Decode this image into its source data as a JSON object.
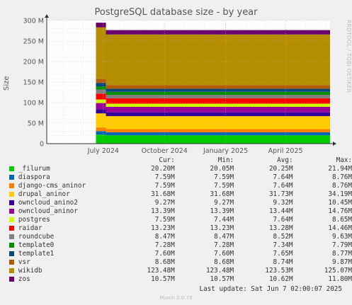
{
  "title": "PostgreSQL database size - by year",
  "side_label": "RRDTOOL / TOBI OETIKER",
  "ylabel": "Size",
  "colors": {
    "background": "#f0f0f0",
    "plot_bg": "#ffffff",
    "grid_major": "#e8a0a0",
    "grid_minor": "#dddddd",
    "axis": "#333333"
  },
  "chart_data": {
    "type": "area",
    "stacked": true,
    "ylabel": "Size",
    "ylim": [
      0,
      300
    ],
    "y_unit": "M",
    "y_ticks": [
      "0",
      "50 M",
      "100 M",
      "150 M",
      "200 M",
      "250 M",
      "300 M"
    ],
    "x_ticks": [
      "July 2024",
      "October 2024",
      "January 2025",
      "April 2025"
    ],
    "time_range": [
      "2024-04-07",
      "2025-06-07"
    ],
    "data_start": "2024-06-20",
    "step_date": "2024-07-05",
    "grid": true,
    "series": [
      {
        "name": "_filurum",
        "color": "#00cc00",
        "cur": "20.20M",
        "min": "20.05M",
        "avg": "20.25M",
        "max": "21.94M",
        "start": 21.94,
        "end": 20.2
      },
      {
        "name": "diaspora",
        "color": "#0066b3",
        "cur": "7.59M",
        "min": "7.59M",
        "avg": "7.64M",
        "max": "8.76M",
        "start": 8.76,
        "end": 7.59
      },
      {
        "name": "django-cms_aninor",
        "color": "#ff8000",
        "cur": "7.59M",
        "min": "7.59M",
        "avg": "7.64M",
        "max": "8.76M",
        "start": 8.76,
        "end": 7.59
      },
      {
        "name": "drupal_aninor",
        "color": "#ffcc00",
        "cur": "31.68M",
        "min": "31.68M",
        "avg": "31.73M",
        "max": "34.19M",
        "start": 34.19,
        "end": 31.68
      },
      {
        "name": "owncloud_anino2",
        "color": "#330099",
        "cur": "9.27M",
        "min": "9.27M",
        "avg": "9.32M",
        "max": "10.45M",
        "start": 10.45,
        "end": 9.27
      },
      {
        "name": "owncloud_aninor",
        "color": "#990099",
        "cur": "13.39M",
        "min": "13.39M",
        "avg": "13.44M",
        "max": "14.76M",
        "start": 14.76,
        "end": 13.39
      },
      {
        "name": "postgres",
        "color": "#ccff00",
        "cur": "7.59M",
        "min": "7.44M",
        "avg": "7.64M",
        "max": "8.65M",
        "start": 8.65,
        "end": 7.59
      },
      {
        "name": "raidar",
        "color": "#ff0000",
        "cur": "13.23M",
        "min": "13.23M",
        "avg": "13.28M",
        "max": "14.46M",
        "start": 14.46,
        "end": 13.23
      },
      {
        "name": "roundcube",
        "color": "#808080",
        "cur": "8.47M",
        "min": "8.47M",
        "avg": "8.52M",
        "max": "9.63M",
        "start": 9.63,
        "end": 8.47
      },
      {
        "name": "template0",
        "color": "#008f00",
        "cur": "7.28M",
        "min": "7.28M",
        "avg": "7.34M",
        "max": "7.79M",
        "start": 7.79,
        "end": 7.28
      },
      {
        "name": "template1",
        "color": "#00487d",
        "cur": "7.60M",
        "min": "7.60M",
        "avg": "7.65M",
        "max": "8.77M",
        "start": 8.77,
        "end": 7.6
      },
      {
        "name": "vsr",
        "color": "#b35a00",
        "cur": "8.68M",
        "min": "8.68M",
        "avg": "8.74M",
        "max": "9.87M",
        "start": 9.87,
        "end": 8.68
      },
      {
        "name": "wikidb",
        "color": "#b38f00",
        "cur": "123.48M",
        "min": "123.48M",
        "avg": "123.53M",
        "max": "125.07M",
        "start": 125.07,
        "end": 123.48
      },
      {
        "name": "zos",
        "color": "#6b006b",
        "cur": "10.57M",
        "min": "10.57M",
        "avg": "10.62M",
        "max": "11.80M",
        "start": 11.8,
        "end": 10.57
      }
    ]
  },
  "legend_headers": {
    "cur": "Cur:",
    "min": "Min:",
    "avg": "Avg:",
    "max": "Max:"
  },
  "last_update": "Last update: Sat Jun  7 02:00:07 2025",
  "munin_version": "Munin 2.0.73"
}
